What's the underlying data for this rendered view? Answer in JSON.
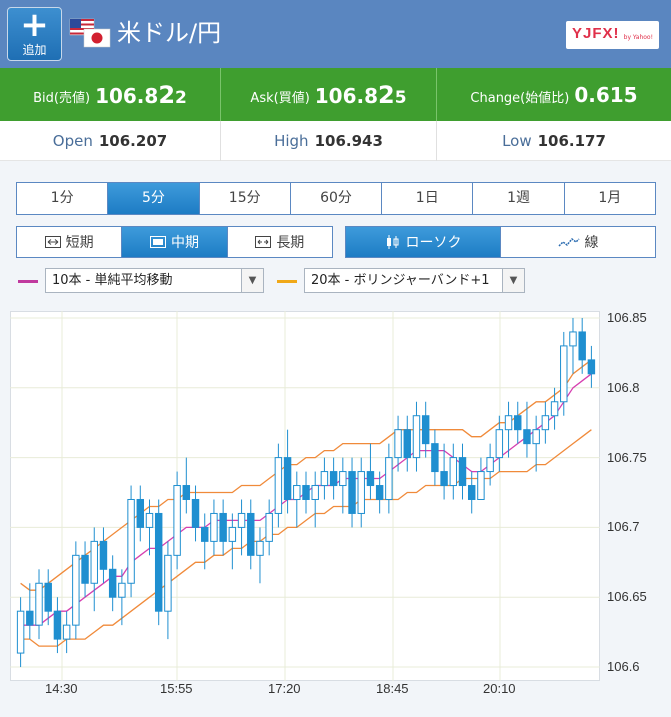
{
  "header": {
    "add_button_label": "追加",
    "pair_title": "米ドル/円",
    "logo_text": "YJFX!",
    "logo_sub": "by Yahoo!"
  },
  "quote": {
    "bid": {
      "label": "Bid(売値)",
      "main": "106.8",
      "big": "2",
      "small": "2"
    },
    "ask": {
      "label": "Ask(買値)",
      "main": "106.8",
      "big": "2",
      "small": "5"
    },
    "change": {
      "label": "Change(始値比)",
      "value": "0.615"
    }
  },
  "ohl": {
    "open": {
      "label": "Open",
      "value": "106.207"
    },
    "high": {
      "label": "High",
      "value": "106.943"
    },
    "low": {
      "label": "Low",
      "value": "106.177"
    }
  },
  "period_tabs": [
    "1分",
    "5分",
    "15分",
    "60分",
    "1日",
    "1週",
    "1月"
  ],
  "period_active": "5分",
  "span_tabs": [
    "短期",
    "中期",
    "長期"
  ],
  "span_active": "中期",
  "type_tabs": [
    "ローソク",
    "線"
  ],
  "type_active": "ローソク",
  "indicators": [
    {
      "label": "10本 - 単純平均移動",
      "color": "#c0399e"
    },
    {
      "label": "20本 - ボリンジャーバンド+1",
      "color": "#f0a818"
    }
  ],
  "colors": {
    "candle": "#1f8fd0",
    "ma": "#d63fb0",
    "band": "#f08a3a",
    "header": "#5a86c0",
    "quote_bar": "#3f9e2f"
  },
  "chart_data": {
    "type": "candlestick",
    "y_ticks": [
      "106.85",
      "106.8",
      "106.75",
      "106.7",
      "106.65",
      "106.6"
    ],
    "ylim": [
      106.59,
      106.855
    ],
    "x_ticks": [
      "14:30",
      "15:55",
      "17:20",
      "18:45",
      "20:10"
    ],
    "ohlc": [
      [
        106.61,
        106.65,
        106.6,
        106.64
      ],
      [
        106.64,
        106.66,
        106.62,
        106.63
      ],
      [
        106.63,
        106.67,
        106.62,
        106.66
      ],
      [
        106.66,
        106.67,
        106.63,
        106.64
      ],
      [
        106.64,
        106.65,
        106.61,
        106.62
      ],
      [
        106.62,
        106.64,
        106.61,
        106.63
      ],
      [
        106.63,
        106.69,
        106.62,
        106.68
      ],
      [
        106.68,
        106.69,
        106.65,
        106.66
      ],
      [
        106.66,
        106.7,
        106.64,
        106.69
      ],
      [
        106.69,
        106.7,
        106.66,
        106.67
      ],
      [
        106.67,
        106.68,
        106.64,
        106.65
      ],
      [
        106.65,
        106.67,
        106.63,
        106.66
      ],
      [
        106.66,
        106.73,
        106.65,
        106.72
      ],
      [
        106.72,
        106.73,
        106.69,
        106.7
      ],
      [
        106.7,
        106.72,
        106.68,
        106.71
      ],
      [
        106.71,
        106.72,
        106.63,
        106.64
      ],
      [
        106.64,
        106.69,
        106.62,
        106.68
      ],
      [
        106.68,
        106.74,
        106.67,
        106.73
      ],
      [
        106.73,
        106.75,
        106.71,
        106.72
      ],
      [
        106.72,
        106.73,
        106.69,
        106.7
      ],
      [
        106.7,
        106.71,
        106.67,
        106.69
      ],
      [
        106.69,
        106.72,
        106.68,
        106.71
      ],
      [
        106.71,
        106.72,
        106.68,
        106.69
      ],
      [
        106.69,
        106.71,
        106.67,
        106.7
      ],
      [
        106.7,
        106.72,
        106.68,
        106.71
      ],
      [
        106.71,
        106.72,
        106.67,
        106.68
      ],
      [
        106.68,
        106.7,
        106.66,
        106.69
      ],
      [
        106.69,
        106.72,
        106.68,
        106.71
      ],
      [
        106.71,
        106.76,
        106.7,
        106.75
      ],
      [
        106.75,
        106.77,
        106.71,
        106.72
      ],
      [
        106.72,
        106.74,
        106.7,
        106.73
      ],
      [
        106.73,
        106.74,
        106.71,
        106.72
      ],
      [
        106.72,
        106.74,
        106.7,
        106.73
      ],
      [
        106.73,
        106.75,
        106.72,
        106.74
      ],
      [
        106.74,
        106.75,
        106.72,
        106.73
      ],
      [
        106.73,
        106.75,
        106.71,
        106.74
      ],
      [
        106.74,
        106.75,
        106.7,
        106.71
      ],
      [
        106.71,
        106.75,
        106.7,
        106.74
      ],
      [
        106.74,
        106.76,
        106.72,
        106.73
      ],
      [
        106.73,
        106.74,
        106.71,
        106.72
      ],
      [
        106.72,
        106.76,
        106.71,
        106.75
      ],
      [
        106.75,
        106.78,
        106.74,
        106.77
      ],
      [
        106.77,
        106.78,
        106.74,
        106.75
      ],
      [
        106.75,
        106.79,
        106.74,
        106.78
      ],
      [
        106.78,
        106.79,
        106.75,
        106.76
      ],
      [
        106.76,
        106.77,
        106.73,
        106.74
      ],
      [
        106.74,
        106.76,
        106.72,
        106.73
      ],
      [
        106.73,
        106.76,
        106.72,
        106.75
      ],
      [
        106.75,
        106.76,
        106.72,
        106.73
      ],
      [
        106.73,
        106.74,
        106.71,
        106.72
      ],
      [
        106.72,
        106.75,
        106.72,
        106.74
      ],
      [
        106.74,
        106.76,
        106.73,
        106.75
      ],
      [
        106.75,
        106.78,
        106.74,
        106.77
      ],
      [
        106.77,
        106.79,
        106.75,
        106.78
      ],
      [
        106.78,
        106.79,
        106.76,
        106.77
      ],
      [
        106.77,
        106.79,
        106.75,
        106.76
      ],
      [
        106.76,
        106.78,
        106.74,
        106.77
      ],
      [
        106.77,
        106.79,
        106.76,
        106.78
      ],
      [
        106.78,
        106.8,
        106.77,
        106.79
      ],
      [
        106.79,
        106.84,
        106.78,
        106.83
      ],
      [
        106.83,
        106.85,
        106.81,
        106.84
      ],
      [
        106.84,
        106.85,
        106.81,
        106.82
      ],
      [
        106.82,
        106.83,
        106.8,
        106.81
      ]
    ],
    "ma": [
      106.63,
      106.63,
      106.63,
      106.635,
      106.64,
      106.64,
      106.645,
      106.65,
      106.655,
      106.66,
      106.665,
      106.665,
      106.675,
      106.68,
      106.685,
      106.685,
      106.69,
      106.695,
      106.7,
      106.7,
      106.7,
      106.705,
      106.705,
      106.705,
      106.705,
      106.705,
      106.705,
      106.71,
      106.715,
      106.72,
      106.72,
      106.725,
      106.73,
      106.73,
      106.73,
      106.735,
      106.735,
      106.735,
      106.735,
      106.735,
      106.74,
      106.745,
      106.75,
      106.755,
      106.755,
      106.755,
      106.755,
      106.75,
      106.745,
      106.74,
      106.74,
      106.745,
      106.75,
      106.755,
      106.76,
      106.765,
      106.77,
      106.775,
      106.78,
      106.79,
      106.8,
      106.805,
      106.81
    ],
    "band_upper": [
      106.66,
      106.655,
      106.655,
      106.66,
      106.665,
      106.67,
      106.675,
      106.68,
      106.685,
      106.69,
      106.695,
      106.7,
      106.705,
      106.71,
      106.715,
      106.715,
      106.72,
      106.72,
      106.725,
      106.725,
      106.725,
      106.725,
      106.725,
      106.725,
      106.73,
      106.73,
      106.73,
      106.735,
      106.74,
      106.745,
      106.745,
      106.75,
      106.75,
      106.755,
      106.755,
      106.76,
      106.76,
      106.76,
      106.76,
      106.76,
      106.765,
      106.77,
      106.77,
      106.77,
      106.77,
      106.77,
      106.77,
      106.77,
      106.77,
      106.765,
      106.765,
      106.77,
      106.775,
      106.775,
      106.78,
      106.785,
      106.79,
      106.79,
      106.795,
      106.8,
      106.81,
      106.815,
      106.82
    ],
    "band_lower": [
      106.62,
      106.62,
      106.615,
      106.615,
      106.615,
      106.62,
      106.62,
      106.62,
      106.625,
      106.63,
      106.63,
      106.635,
      106.64,
      106.645,
      106.65,
      106.655,
      106.66,
      106.665,
      106.67,
      106.675,
      106.675,
      106.68,
      106.68,
      106.685,
      106.685,
      106.69,
      106.69,
      106.695,
      106.695,
      106.7,
      106.7,
      106.705,
      106.71,
      106.71,
      106.715,
      106.715,
      106.715,
      106.72,
      106.72,
      106.72,
      106.72,
      106.72,
      106.725,
      106.725,
      106.73,
      106.73,
      106.73,
      106.73,
      106.735,
      106.735,
      106.735,
      106.735,
      106.74,
      106.74,
      106.74,
      106.74,
      106.745,
      106.745,
      106.75,
      106.755,
      106.76,
      106.765,
      106.77
    ]
  }
}
